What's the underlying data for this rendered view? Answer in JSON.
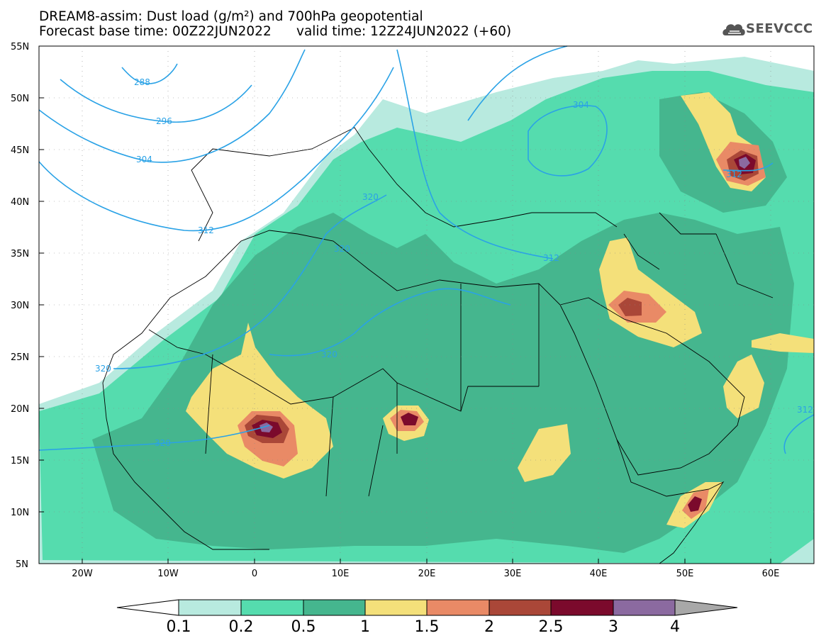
{
  "title": {
    "line1": "DREAM8-assim: Dust load (g/m²) and 700hPa geopotential",
    "line2": "Forecast base time: 00Z22JUN2022      valid time: 12Z24JUN2022 (+60)"
  },
  "logo": {
    "text": "SEEVCCC",
    "icon": "cloud-icon"
  },
  "axes": {
    "lat_labels": [
      "55N",
      "50N",
      "45N",
      "40N",
      "35N",
      "30N",
      "25N",
      "20N",
      "15N",
      "10N",
      "5N"
    ],
    "lon_labels": [
      "20W",
      "10W",
      "0",
      "10E",
      "20E",
      "30E",
      "40E",
      "50E",
      "60E"
    ]
  },
  "contour_labels": [
    "288",
    "296",
    "304",
    "304",
    "312",
    "312",
    "312",
    "312",
    "320",
    "320",
    "320",
    "320",
    "320"
  ],
  "colorbar": {
    "labels": [
      "0.1",
      "0.2",
      "0.5",
      "1",
      "1.5",
      "2",
      "2.5",
      "3",
      "4"
    ],
    "colors": [
      "#ffffff",
      "#b8eadf",
      "#55dcae",
      "#45b68e",
      "#f4e07a",
      "#e98a66",
      "#aa4738",
      "#7b0a2c",
      "#8b6aa0",
      "#a8a8a8"
    ]
  },
  "chart_data": {
    "type": "heatmap",
    "title": "DREAM8-assim: Dust load (g/m²) and 700hPa geopotential",
    "xlabel": "",
    "ylabel": "",
    "xlim": [
      -25,
      65
    ],
    "ylim": [
      5,
      55
    ],
    "levels": [
      0.1,
      0.2,
      0.5,
      1,
      1.5,
      2,
      2.5,
      3,
      4
    ],
    "contour_levels_dam": [
      288,
      296,
      304,
      312,
      320
    ]
  }
}
